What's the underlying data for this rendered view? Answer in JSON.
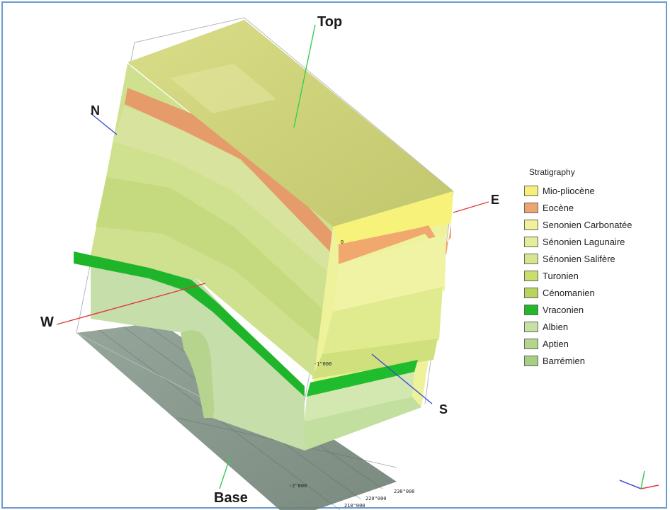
{
  "axes": {
    "top": "Top",
    "base": "Base",
    "north": "N",
    "south": "S",
    "east": "E",
    "west": "W"
  },
  "depth_ticks": [
    "0",
    "-1\"000",
    "-2\"000"
  ],
  "easting_ticks": [
    "210\"000",
    "220\"000",
    "230\"000"
  ],
  "legend": {
    "title": "Stratigraphy",
    "items": [
      {
        "label": "Mio-pliocène",
        "color": "#f5f07a"
      },
      {
        "label": "Eocène",
        "color": "#eda56f"
      },
      {
        "label": "Senonien Carbonatée",
        "color": "#f1f19c"
      },
      {
        "label": "Sénonien Lagunaire",
        "color": "#e3ed9a"
      },
      {
        "label": "Sénonien Salifère",
        "color": "#d6e68f"
      },
      {
        "label": "Turonien",
        "color": "#c9df6c"
      },
      {
        "label": "Cénomanien",
        "color": "#b9d45c"
      },
      {
        "label": "Vraconien",
        "color": "#22b82a"
      },
      {
        "label": "Albien",
        "color": "#c7e0a3"
      },
      {
        "label": "Aptien",
        "color": "#b4d68c"
      },
      {
        "label": "Barrémien",
        "color": "#a6cf83"
      }
    ]
  },
  "colors": {
    "frame": "#6b9ad3",
    "base_surface": "#7d9184",
    "top_surface": "#cdd27a",
    "axis_red": "#e03a3a",
    "axis_blue": "#3a4fd0",
    "axis_green": "#3acb55"
  }
}
